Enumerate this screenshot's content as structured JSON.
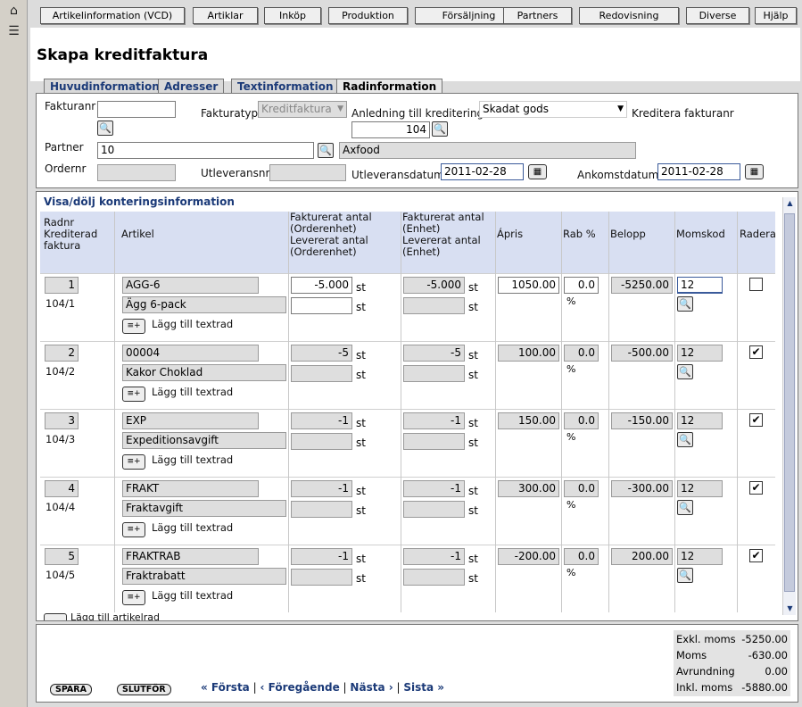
{
  "menu": [
    "Artikelinformation (VCD)",
    "Artiklar",
    "Inköp",
    "Produktion",
    "Försäljning",
    "Partners",
    "Redovisning",
    "Diverse",
    "Hjälp"
  ],
  "page_title": "Skapa kreditfaktura",
  "tabs": [
    "Huvudinformation",
    "Adresser",
    "Textinformation",
    "Radinformation"
  ],
  "header": {
    "fakturanr_label": "Fakturanr",
    "fakturanr_value": "",
    "fakturatyp_label": "Fakturatyp",
    "fakturatyp_value": "Kreditfaktura",
    "anledning_label": "Anledning till kreditering",
    "anledning_value": "Skadat gods",
    "kreditera_label": "Kreditera fakturanr",
    "kreditera_value": "104",
    "partner_label": "Partner",
    "partner_value": "10",
    "partner_name": "Axfood",
    "ordernr_label": "Ordernr",
    "ordernr_value": "",
    "utleveransnr_label": "Utleveransnr",
    "utleveransnr_value": "",
    "utleveransdatum_label": "Utleveransdatum",
    "utleveransdatum_value": "2011-02-28",
    "ankomstdatum_label": "Ankomstdatum",
    "ankomstdatum_value": "2011-02-28"
  },
  "section_title": "Visa/dölj konteringsinformation",
  "columns": {
    "radnr": "Radnr\nKrediterad\nfaktura",
    "artikel": "Artikel",
    "fakt_order": "Fakturerat antal\n(Orderenhet)\nLevererat antal\n(Orderenhet)",
    "fakt_enhet": "Fakturerat antal\n(Enhet)\nLevererat antal\n(Enhet)",
    "apris": "Ápris",
    "rab": "Rab %",
    "belopp": "Belopp",
    "momskod": "Momskod",
    "radera": "Radera"
  },
  "unit_st": "st",
  "unit_pct": "%",
  "add_text_label": "Lägg till textrad",
  "add_article_label": "Lägg till artikelrad",
  "rows": [
    {
      "nr": "1",
      "ref": "104/1",
      "code": "AGG-6",
      "name": "Ägg 6-pack",
      "qty_order": "-5.000",
      "qty_unit": "-5.000",
      "apris": "1050.00",
      "rab": "0.0",
      "belopp": "-5250.00",
      "moms": "12",
      "radera": false
    },
    {
      "nr": "2",
      "ref": "104/2",
      "code": "00004",
      "name": "Kakor Choklad",
      "qty_order": "-5",
      "qty_unit": "-5",
      "apris": "100.00",
      "rab": "0.0",
      "belopp": "-500.00",
      "moms": "12",
      "radera": true
    },
    {
      "nr": "3",
      "ref": "104/3",
      "code": "EXP",
      "name": "Expeditionsavgift",
      "qty_order": "-1",
      "qty_unit": "-1",
      "apris": "150.00",
      "rab": "0.0",
      "belopp": "-150.00",
      "moms": "12",
      "radera": true
    },
    {
      "nr": "4",
      "ref": "104/4",
      "code": "FRAKT",
      "name": "Fraktavgift",
      "qty_order": "-1",
      "qty_unit": "-1",
      "apris": "300.00",
      "rab": "0.0",
      "belopp": "-300.00",
      "moms": "12",
      "radera": true
    },
    {
      "nr": "5",
      "ref": "104/5",
      "code": "FRAKTRAB",
      "name": "Fraktrabatt",
      "qty_order": "-1",
      "qty_unit": "-1",
      "apris": "-200.00",
      "rab": "0.0",
      "belopp": "200.00",
      "moms": "12",
      "radera": true
    }
  ],
  "buttons": {
    "spara": "SPARA",
    "slutfor": "SLUTFÖR"
  },
  "pager": {
    "first": "« Första",
    "prev": "‹ Föregående",
    "next": "Nästa ›",
    "last": "Sista »",
    "sep": "|"
  },
  "totals": [
    {
      "label": "Exkl. moms",
      "value": "-5250.00"
    },
    {
      "label": "Moms",
      "value": "-630.00"
    },
    {
      "label": "Avrundning",
      "value": "0.00"
    },
    {
      "label": "Inkl. moms",
      "value": "-5880.00"
    }
  ],
  "icons": {
    "home": "home-icon",
    "menu": "menu-list-icon",
    "search": "magnifier-icon",
    "calendar": "calendar-icon",
    "addtext": "add-text-icon"
  }
}
